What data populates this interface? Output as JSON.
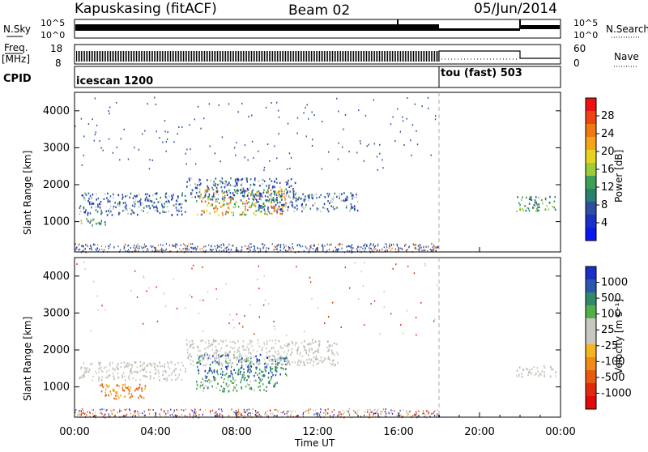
{
  "header": {
    "station": "Kapuskasing (fitACF)",
    "beam": "Beam 02",
    "date": "05/Jun/2014"
  },
  "nsky_panel": {
    "left_label": "N.Sky",
    "left_ticks": [
      "10^5",
      "10^0"
    ],
    "right_ticks": [
      "10^5",
      "10^0"
    ],
    "right_label": "N.Search"
  },
  "freq_panel": {
    "left_label_top": "Freq.",
    "left_label_unit": "[MHz]",
    "left_ticks": [
      "18",
      "8"
    ],
    "right_ticks": [
      "60",
      "0"
    ],
    "right_label": "Nave"
  },
  "cpid_panel": {
    "label": "CPID",
    "modes": [
      {
        "name": "icescan 1200",
        "start_hour": 0,
        "end_hour": 18
      },
      {
        "name": "tou (fast) 503",
        "start_hour": 18,
        "end_hour": 24
      }
    ]
  },
  "time_axis": {
    "label": "Time UT",
    "ticks": [
      "00:00",
      "04:00",
      "08:00",
      "12:00",
      "16:00",
      "20:00",
      "00:00"
    ]
  },
  "power_panel": {
    "ylabel": "Slant Range [km]",
    "yticks": [
      "4000",
      "3000",
      "2000",
      "1000"
    ],
    "colorbar_label": "Power [dB]",
    "colorbar_ticks": [
      "28",
      "24",
      "20",
      "16",
      "12",
      "8",
      "4"
    ],
    "colorbar_colors": [
      "#ee1111",
      "#ee4411",
      "#f07a12",
      "#f5a418",
      "#e8d21f",
      "#9ecb3a",
      "#3d9e55",
      "#2a7f6e",
      "#2e4fa0",
      "#1a2ec8",
      "#0a18f0"
    ]
  },
  "velocity_panel": {
    "ylabel": "Slant Range [km]",
    "yticks": [
      "4000",
      "3000",
      "2000",
      "1000"
    ],
    "colorbar_label": "Velocity [m s⁻¹]",
    "colorbar_ticks": [
      "1000",
      "500",
      "100",
      "25",
      "-25",
      "-100",
      "-500",
      "-1000"
    ],
    "colorbar_colors": [
      "#1a2ec8",
      "#2b57b0",
      "#2f8a6a",
      "#52b04a",
      "#c8c8c0",
      "#c8c8c0",
      "#f5b520",
      "#f08a18",
      "#e85a10",
      "#e02a0e",
      "#e00a0a"
    ]
  },
  "chart_data": {
    "type": "heatmap",
    "x_range_hours": [
      0,
      24
    ],
    "y_range_km": [
      180,
      4500
    ],
    "power_regions": [
      {
        "x": [
          0.2,
          5.5
        ],
        "y": [
          1200,
          1800
        ],
        "level": "low"
      },
      {
        "x": [
          0.2,
          1.5
        ],
        "y": [
          900,
          1100
        ],
        "level": "mid"
      },
      {
        "x": [
          6.0,
          10.5
        ],
        "y": [
          1200,
          1900
        ],
        "level": "high"
      },
      {
        "x": [
          5.5,
          11.0
        ],
        "y": [
          1600,
          2200
        ],
        "level": "low"
      },
      {
        "x": [
          9.0,
          14.0
        ],
        "y": [
          1300,
          1800
        ],
        "level": "low"
      },
      {
        "x": [
          21.8,
          23.8
        ],
        "y": [
          1300,
          1700
        ],
        "level": "mid"
      }
    ],
    "velocity_regions": [
      {
        "x": [
          0.2,
          5.5
        ],
        "y": [
          1200,
          1700
        ],
        "value": "near-zero"
      },
      {
        "x": [
          1.2,
          3.5
        ],
        "y": [
          700,
          1100
        ],
        "value": "negative"
      },
      {
        "x": [
          6.0,
          10.5
        ],
        "y": [
          1250,
          1900
        ],
        "value": "positive"
      },
      {
        "x": [
          6.0,
          10.0
        ],
        "y": [
          900,
          1250
        ],
        "value": "weak-positive"
      },
      {
        "x": [
          5.5,
          13.0
        ],
        "y": [
          1600,
          2300
        ],
        "value": "near-zero"
      },
      {
        "x": [
          21.8,
          23.8
        ],
        "y": [
          1300,
          1600
        ],
        "value": "near-zero"
      }
    ]
  }
}
